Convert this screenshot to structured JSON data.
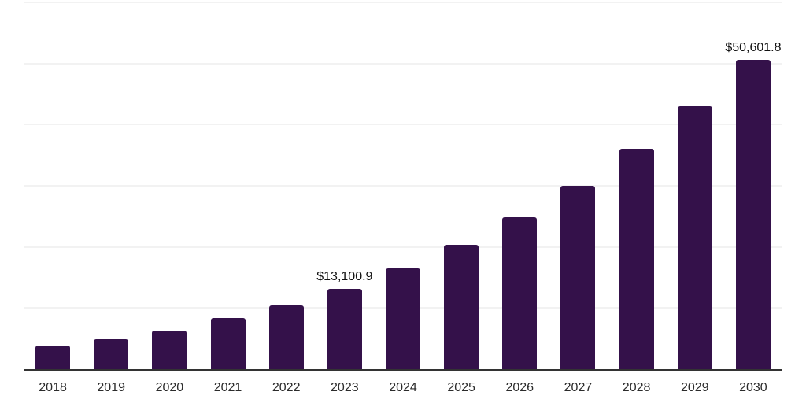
{
  "chart_data": {
    "type": "bar",
    "title": "",
    "xlabel": "",
    "ylabel": "",
    "categories": [
      "2018",
      "2019",
      "2020",
      "2021",
      "2022",
      "2023",
      "2024",
      "2025",
      "2026",
      "2027",
      "2028",
      "2029",
      "2030"
    ],
    "values": [
      3850,
      4880,
      6300,
      8350,
      10400,
      13100.9,
      16450,
      20300,
      24800,
      30050,
      36100,
      43050,
      50601.8
    ],
    "value_labels": [
      {
        "category": "2023",
        "text": "$13,100.9"
      },
      {
        "category": "2030",
        "text": "$50,601.8"
      }
    ],
    "ylim": [
      0,
      60000
    ],
    "grid_interval": 10000,
    "grid": true,
    "legend": false,
    "y_axis_labels_visible": false
  },
  "style": {
    "bar_color": "#34114A",
    "grid_color": "#f2f2f2",
    "axis_color": "#333333",
    "tick_label_color": "#2b2b2b",
    "value_label_color": "#111111",
    "background": "#ffffff"
  }
}
